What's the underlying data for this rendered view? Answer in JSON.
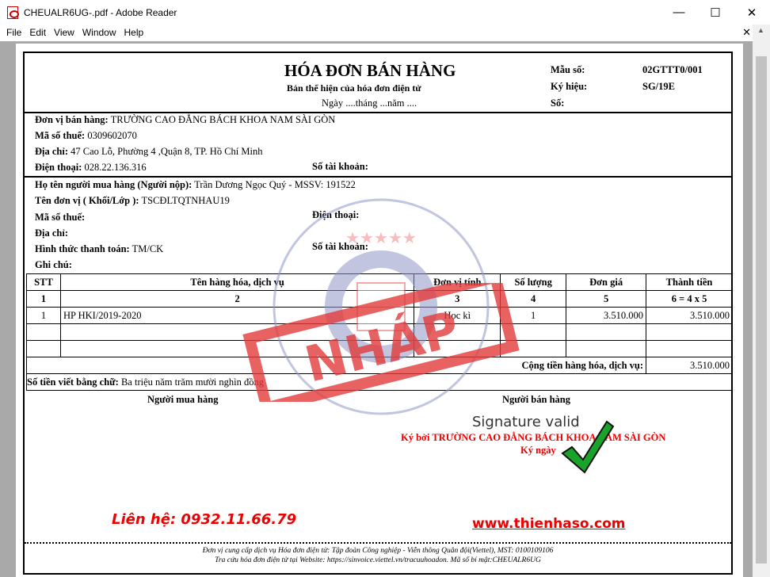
{
  "window": {
    "title": "CHEUALR6UG-.pdf - Adobe Reader",
    "minimize": "—",
    "maximize": "☐",
    "close": "✕"
  },
  "menu": [
    "File",
    "Edit",
    "View",
    "Window",
    "Help"
  ],
  "menu_close": "✕",
  "invoice": {
    "title": "HÓA ĐƠN BÁN HÀNG",
    "subtitle": "Bản thể hiện của hóa đơn điện tử",
    "date": "Ngày ....tháng ...năm ....",
    "mau_so_label": "Mẫu số:",
    "mau_so": "02GTTT0/001",
    "ky_hieu_label": "Ký hiệu:",
    "ky_hieu": "SG/19E",
    "so_label": "Số:",
    "seller": {
      "name_label": "Đơn vị bán hàng:",
      "name": "TRƯỜNG CAO ĐẲNG BÁCH KHOA NAM SÀI GÒN",
      "tax_label": "Mã số thuế:",
      "tax": "0309602070",
      "address_label": "Địa chỉ:",
      "address": "47 Cao Lỗ, Phường 4 ,Quận 8, TP. Hồ Chí Minh",
      "phone_label": "Điện thoại:",
      "phone": "028.22.136.316",
      "account_label": "Số tài khoản:"
    },
    "buyer": {
      "name_label": "Họ tên người mua hàng (Người nộp):",
      "name": "Trần Dương Ngọc Quý - MSSV: 191522",
      "unit_label": "Tên đơn vị ( Khối/Lớp ):",
      "unit": "TSCĐLTQTNHAU19",
      "tax_label": "Mã số thuế:",
      "phone_label": "Điện thoại:",
      "address_label": "Địa chỉ:",
      "payment_label": "Hình thức thanh toán:",
      "payment": "TM/CK",
      "account_label": "Số tài khoản:",
      "note_label": "Ghi chú:"
    },
    "table": {
      "headers": [
        "STT",
        "Tên hàng hóa, dịch vụ",
        "Đơn vị tính",
        "Số lượng",
        "Đơn giá",
        "Thành tiền"
      ],
      "indices": [
        "1",
        "2",
        "3",
        "4",
        "5",
        "6 = 4 x 5"
      ],
      "rows": [
        [
          "1",
          "HP HKI/2019-2020",
          "Học kì",
          "1",
          "3.510.000",
          "3.510.000"
        ]
      ],
      "total_label": "Cộng tiền hàng hóa, dịch vụ:",
      "total": "3.510.000"
    },
    "in_words_label": "Số tiền viết bằng chữ:",
    "in_words": "Ba triệu năm trăm mười nghìn đồng",
    "buyer_sign": "Người mua hàng",
    "seller_sign": "Người bán hàng",
    "signature_valid": "Signature valid",
    "signed_by": "Ký bởi TRƯỜNG CAO ĐẲNG BÁCH KHOA NAM SÀI GÒN",
    "signed_date": "Ký ngày",
    "contact": "Liên hệ: 0932.11.66.79",
    "website": "www.thienhaso.com",
    "footer1": "Đơn vị cung cấp dịch vụ Hóa đơn điện tử: Tập đoàn Công nghiệp - Viễn thông Quân đội(Viettel), MST: 0100109106",
    "footer2": "Tra cứu hóa đơn điện tử tại Website: https://sinvoice.viettel.vn/tracuuhoadon. Mã số bí mật:CHEUALR6UG",
    "stamp_text": "TRƯỜNG CAO ĐẲNG BÁCH KHOA NAM SÀI GÒN",
    "draft_stamp": "NHÁP"
  },
  "colors": {
    "stamp_blue": "#8f97c8",
    "draft_red": "#e23b3b",
    "check_green": "#1aa32a"
  }
}
